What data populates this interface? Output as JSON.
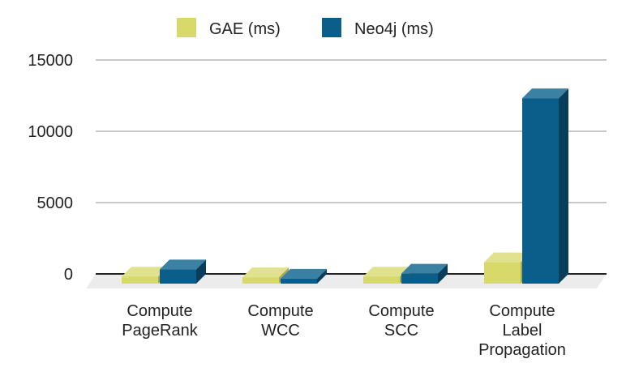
{
  "chart_data": {
    "type": "bar",
    "style": "3d-clustered-column",
    "categories": [
      [
        "Compute",
        "PageRank"
      ],
      [
        "Compute",
        "WCC"
      ],
      [
        "Compute",
        "SCC"
      ],
      [
        "Compute",
        "Label",
        "Propagation"
      ]
    ],
    "series": [
      {
        "name": "GAE (ms)",
        "values": [
          500,
          450,
          500,
          1500
        ],
        "color": "#d7d96a"
      },
      {
        "name": "Neo4j (ms)",
        "values": [
          1000,
          350,
          700,
          13000
        ],
        "color": "#0b5e8a"
      }
    ],
    "yticks": [
      0,
      5000,
      10000,
      15000
    ],
    "ylim": [
      0,
      15000
    ],
    "grid": true,
    "legend": "top"
  }
}
